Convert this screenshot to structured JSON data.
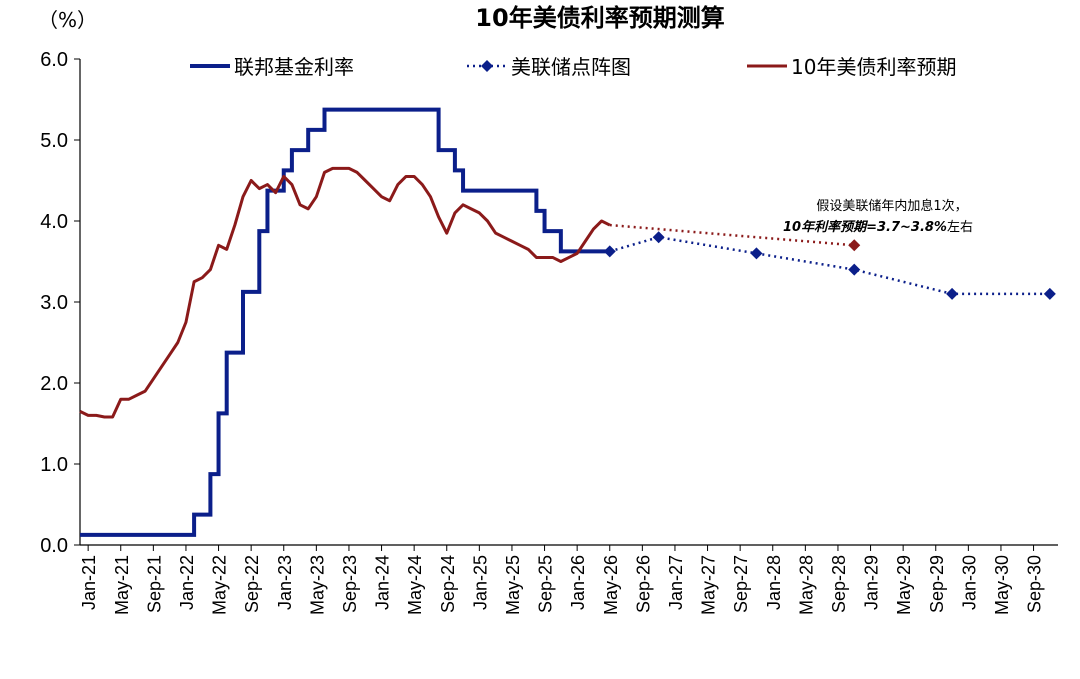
{
  "chart_data": {
    "type": "line",
    "title": "10年美债利率预期测算",
    "ylabel": "（%）",
    "ylim": [
      0,
      6
    ],
    "y_ticks": [
      "0.0",
      "1.0",
      "2.0",
      "3.0",
      "4.0",
      "5.0",
      "6.0"
    ],
    "x_range": [
      "2021-01",
      "2030-12"
    ],
    "x_ticks": [
      "Jan-21",
      "May-21",
      "Sep-21",
      "Jan-22",
      "May-22",
      "Sep-22",
      "Jan-23",
      "May-23",
      "Sep-23",
      "Jan-24",
      "May-24",
      "Sep-24",
      "Jan-25",
      "May-25",
      "Sep-25",
      "Jan-26",
      "May-26",
      "Sep-26",
      "Jan-27",
      "May-27",
      "Sep-27",
      "Jan-28",
      "May-28",
      "Sep-28",
      "Jan-29",
      "May-29",
      "Sep-29",
      "Jan-30",
      "May-30",
      "Sep-30"
    ],
    "legend_position": "top",
    "series": [
      {
        "name": "联邦基金利率",
        "color": "#0b1f8a",
        "style": "step",
        "points": [
          [
            "2021-01",
            0.125
          ],
          [
            "2022-03",
            0.375
          ],
          [
            "2022-05",
            0.875
          ],
          [
            "2022-06",
            1.625
          ],
          [
            "2022-07",
            2.375
          ],
          [
            "2022-09",
            3.125
          ],
          [
            "2022-11",
            3.875
          ],
          [
            "2022-12",
            4.375
          ],
          [
            "2023-02",
            4.625
          ],
          [
            "2023-03",
            4.875
          ],
          [
            "2023-05",
            5.125
          ],
          [
            "2023-07",
            5.375
          ],
          [
            "2024-09",
            4.875
          ],
          [
            "2024-11",
            4.625
          ],
          [
            "2024-12",
            4.375
          ],
          [
            "2025-09",
            4.125
          ],
          [
            "2025-10",
            3.875
          ],
          [
            "2025-12",
            3.625
          ],
          [
            "2026-06",
            3.625
          ]
        ]
      },
      {
        "name": "美联储点阵图",
        "color": "#0b1f8a",
        "style": "dotted-diamond",
        "points": [
          [
            "2026-06",
            3.625
          ],
          [
            "2026-12",
            3.8
          ],
          [
            "2027-12",
            3.6
          ],
          [
            "2028-12",
            3.4
          ],
          [
            "2029-12",
            3.1
          ],
          [
            "2030-12",
            3.1
          ]
        ]
      },
      {
        "name": "10年美债利率预期",
        "color": "#8b1a1a",
        "style": "line",
        "points": [
          [
            "2021-01",
            1.65
          ],
          [
            "2021-02",
            1.6
          ],
          [
            "2021-03",
            1.6
          ],
          [
            "2021-04",
            1.58
          ],
          [
            "2021-05",
            1.58
          ],
          [
            "2021-06",
            1.8
          ],
          [
            "2021-07",
            1.8
          ],
          [
            "2021-08",
            1.85
          ],
          [
            "2021-09",
            1.9
          ],
          [
            "2021-10",
            2.05
          ],
          [
            "2021-11",
            2.2
          ],
          [
            "2021-12",
            2.35
          ],
          [
            "2022-01",
            2.5
          ],
          [
            "2022-02",
            2.75
          ],
          [
            "2022-03",
            3.25
          ],
          [
            "2022-04",
            3.3
          ],
          [
            "2022-05",
            3.4
          ],
          [
            "2022-06",
            3.7
          ],
          [
            "2022-07",
            3.65
          ],
          [
            "2022-08",
            3.95
          ],
          [
            "2022-09",
            4.3
          ],
          [
            "2022-10",
            4.5
          ],
          [
            "2022-11",
            4.4
          ],
          [
            "2022-12",
            4.45
          ],
          [
            "2023-01",
            4.35
          ],
          [
            "2023-02",
            4.55
          ],
          [
            "2023-03",
            4.45
          ],
          [
            "2023-04",
            4.2
          ],
          [
            "2023-05",
            4.15
          ],
          [
            "2023-06",
            4.3
          ],
          [
            "2023-07",
            4.6
          ],
          [
            "2023-08",
            4.65
          ],
          [
            "2023-09",
            4.65
          ],
          [
            "2023-10",
            4.65
          ],
          [
            "2023-11",
            4.6
          ],
          [
            "2023-12",
            4.5
          ],
          [
            "2024-01",
            4.4
          ],
          [
            "2024-02",
            4.3
          ],
          [
            "2024-03",
            4.25
          ],
          [
            "2024-04",
            4.45
          ],
          [
            "2024-05",
            4.55
          ],
          [
            "2024-06",
            4.55
          ],
          [
            "2024-07",
            4.45
          ],
          [
            "2024-08",
            4.3
          ],
          [
            "2024-09",
            4.05
          ],
          [
            "2024-10",
            3.85
          ],
          [
            "2024-11",
            4.1
          ],
          [
            "2024-12",
            4.2
          ],
          [
            "2025-01",
            4.15
          ],
          [
            "2025-02",
            4.1
          ],
          [
            "2025-03",
            4.0
          ],
          [
            "2025-04",
            3.85
          ],
          [
            "2025-05",
            3.8
          ],
          [
            "2025-06",
            3.75
          ],
          [
            "2025-07",
            3.7
          ],
          [
            "2025-08",
            3.65
          ],
          [
            "2025-09",
            3.55
          ],
          [
            "2025-10",
            3.55
          ],
          [
            "2025-11",
            3.55
          ],
          [
            "2025-12",
            3.5
          ],
          [
            "2026-01",
            3.55
          ],
          [
            "2026-02",
            3.6
          ],
          [
            "2026-03",
            3.75
          ],
          [
            "2026-04",
            3.9
          ],
          [
            "2026-05",
            4.0
          ],
          [
            "2026-06",
            3.95
          ]
        ]
      },
      {
        "name": "10年美债利率预期（测算）",
        "color": "#8b1a1a",
        "style": "dotted-diamond-end",
        "points": [
          [
            "2026-06",
            3.95
          ],
          [
            "2028-12",
            3.7
          ]
        ]
      }
    ],
    "annotation": {
      "line1": "假设美联储年内加息1次，",
      "line2_bold": "10年利率预期=3.7~3.8%",
      "line2_tail": "左右"
    }
  }
}
